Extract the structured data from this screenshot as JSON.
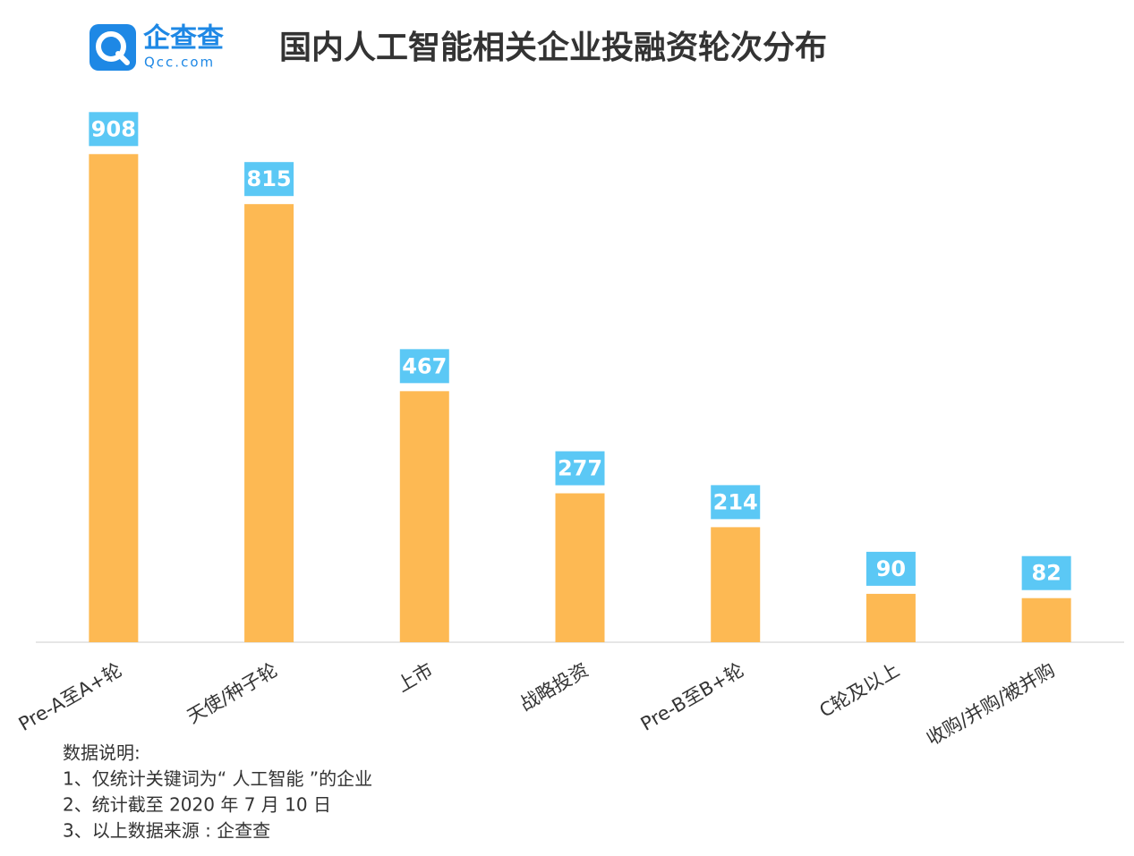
{
  "logo": {
    "name": "企查查",
    "domain": "Qcc.com"
  },
  "chart_data": {
    "type": "bar",
    "title": "国内人工智能相关企业投融资轮次分布",
    "categories": [
      "Pre-A至A+轮",
      "天使/种子轮",
      "上市",
      "战略投资",
      "Pre-B至B+轮",
      "C轮及以上",
      "收购/并购/被并购"
    ],
    "values": [
      908,
      815,
      467,
      277,
      214,
      90,
      82
    ],
    "color": "#fdb953",
    "label_color": "#5bc8f5"
  },
  "notes": {
    "title": "数据说明:",
    "items": [
      "1、仅统计关键词为“ 人工智能 ”的企业",
      "2、统计截至 2020 年 7 月 10 日",
      "3、以上数据来源 : 企查查"
    ]
  }
}
